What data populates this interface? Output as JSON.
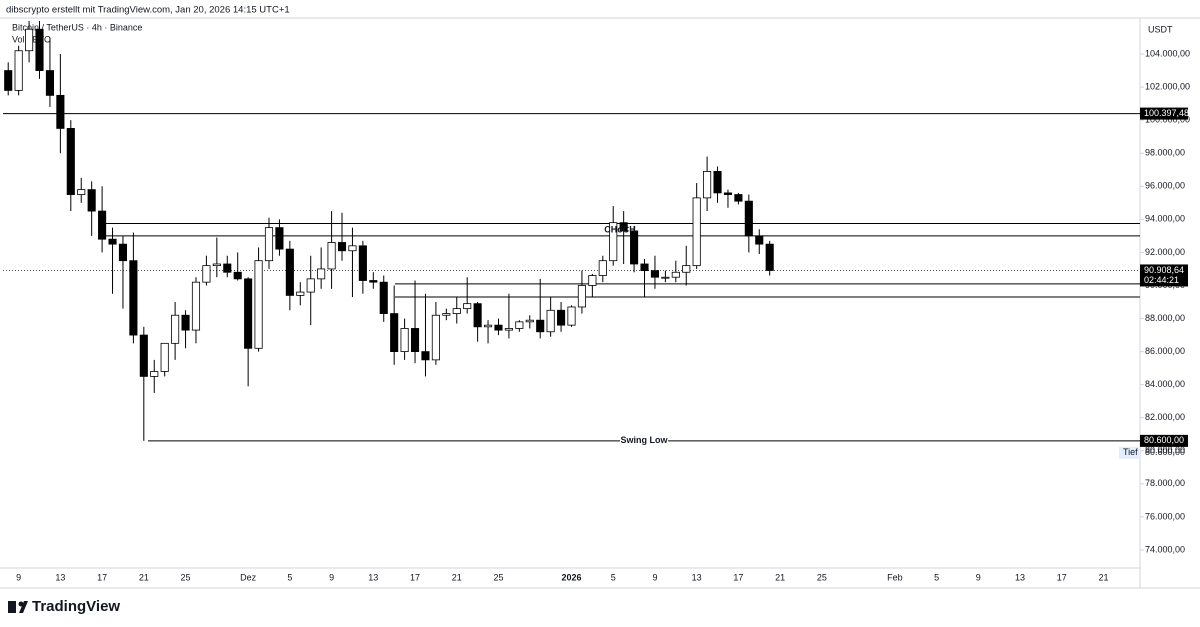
{
  "chart_data": {
    "type": "candlestick",
    "header": "dibscrypto erstellt mit TradingView.com, Jan 20, 2026 14:15 UTC+1",
    "title": "Bitcoin / TetherUS · 4h · Binance",
    "volume_label": "Vol · BTC",
    "currency": "USDT",
    "brand": "TradingView",
    "categories": [
      null,
      "9",
      null,
      null,
      null,
      "13",
      null,
      null,
      null,
      "17",
      null,
      null,
      null,
      "21",
      null,
      null,
      null,
      "25",
      null,
      null,
      null,
      null,
      null,
      "Dez",
      null,
      null,
      null,
      "5",
      null,
      null,
      null,
      "9",
      null,
      null,
      null,
      "13",
      null,
      null,
      null,
      "17",
      null,
      null,
      null,
      "21",
      null,
      null,
      null,
      "25",
      null,
      null,
      null,
      null,
      null,
      null,
      "2026",
      null,
      null,
      null,
      "5",
      null,
      null,
      null,
      "9",
      null,
      null,
      null,
      "13",
      null,
      null,
      null,
      "17",
      null,
      null,
      null,
      "21",
      null,
      null,
      null,
      "25",
      null,
      null,
      null,
      null,
      null,
      null,
      "Feb",
      null,
      null,
      null,
      "5",
      null,
      null,
      null,
      "9",
      null,
      null,
      null,
      "13",
      null,
      null,
      null,
      "17",
      null,
      null,
      null,
      "21",
      null,
      null,
      null
    ],
    "open": [
      103000,
      101800,
      104200,
      105500,
      103000,
      101500,
      99500,
      95500,
      95800,
      94500,
      92800,
      92500,
      91500,
      87000,
      84500,
      84800,
      86500,
      88200,
      87300,
      90200,
      91200,
      91300,
      90800,
      90400,
      86200,
      91500,
      93500,
      92200,
      89400,
      89600,
      90400,
      91000,
      92600,
      92100,
      92400,
      90300,
      90200,
      88300,
      86000,
      87400,
      86000,
      85500,
      88200,
      88300,
      88600,
      88900,
      87500,
      87600,
      87300,
      87400,
      87800,
      87900,
      87200,
      88500,
      87600,
      88700,
      90000,
      90600,
      91500,
      93800,
      93300,
      91300,
      90900,
      90500,
      90500,
      90800,
      91200,
      95300,
      96900,
      95600,
      95500,
      95100,
      93000,
      92500,
      null,
      null,
      null,
      null,
      null,
      null,
      null,
      null,
      null,
      null,
      null,
      null,
      null,
      null,
      null,
      null,
      null,
      null,
      null,
      null,
      null,
      null,
      null,
      null,
      null,
      null,
      null,
      null,
      null,
      null,
      null,
      null,
      null,
      null,
      null
    ],
    "high": [
      103500,
      104500,
      106000,
      106000,
      105000,
      104000,
      100000,
      96500,
      96300,
      96000,
      93500,
      93000,
      93200,
      87500,
      85500,
      86500,
      89000,
      88500,
      90500,
      91800,
      92900,
      91800,
      92000,
      90500,
      92300,
      94100,
      94000,
      92700,
      90200,
      91800,
      92300,
      94500,
      94400,
      93500,
      92700,
      90800,
      90600,
      90000,
      88000,
      90300,
      89500,
      89000,
      88600,
      89300,
      90500,
      89000,
      87900,
      88000,
      89500,
      87900,
      88200,
      90400,
      89300,
      89000,
      88800,
      90900,
      90700,
      91800,
      94800,
      94500,
      93600,
      91600,
      91800,
      90900,
      91500,
      92400,
      96200,
      97800,
      97200,
      95800,
      95600,
      95500,
      93400,
      92700,
      null,
      null,
      null,
      null,
      null,
      null,
      null,
      null,
      null,
      null,
      null,
      null,
      null,
      null,
      null,
      null,
      null,
      null,
      null,
      null,
      null,
      null,
      null,
      null,
      null,
      null,
      null,
      null,
      null,
      null,
      null,
      null,
      null,
      null,
      null
    ],
    "low": [
      101500,
      101500,
      103500,
      102500,
      100800,
      98000,
      94500,
      95000,
      93000,
      92000,
      89500,
      88600,
      86500,
      80600,
      83500,
      84500,
      85500,
      86200,
      86500,
      90000,
      90500,
      90500,
      90300,
      83900,
      86000,
      91000,
      91800,
      88500,
      88800,
      87600,
      89800,
      89800,
      91500,
      89300,
      89500,
      89800,
      87800,
      85200,
      85500,
      85300,
      84500,
      85200,
      87900,
      87700,
      88300,
      86600,
      86500,
      87000,
      86800,
      87200,
      87400,
      86800,
      86900,
      87200,
      87500,
      88300,
      89300,
      90200,
      91200,
      91300,
      90800,
      89300,
      89800,
      90200,
      90200,
      90000,
      91000,
      94500,
      95000,
      94700,
      94900,
      92000,
      91900,
      90600,
      null,
      null,
      null,
      null,
      null,
      null,
      null,
      null,
      null,
      null,
      null,
      null,
      null,
      null,
      null,
      null,
      null,
      null,
      null,
      null,
      null,
      null,
      null,
      null,
      null,
      null,
      null,
      null,
      null,
      null,
      null,
      null,
      null,
      null,
      null
    ],
    "close": [
      101800,
      104200,
      105500,
      103000,
      101500,
      99500,
      95500,
      95800,
      94500,
      92800,
      92500,
      91500,
      87000,
      84500,
      84800,
      86500,
      88200,
      87300,
      90200,
      91200,
      91300,
      90800,
      90400,
      86200,
      91500,
      93500,
      92200,
      89400,
      89600,
      90400,
      91000,
      92600,
      92100,
      92400,
      90300,
      90200,
      88300,
      86000,
      87400,
      86000,
      85500,
      88200,
      88300,
      88600,
      88900,
      87500,
      87600,
      87300,
      87400,
      87800,
      87900,
      87200,
      88500,
      87600,
      88700,
      90000,
      90600,
      91500,
      93800,
      93300,
      91300,
      90900,
      90500,
      90500,
      90800,
      91200,
      95300,
      96900,
      95600,
      95500,
      95100,
      93000,
      92500,
      90908.64,
      null,
      null,
      null,
      null,
      null,
      null,
      null,
      null,
      null,
      null,
      null,
      null,
      null,
      null,
      null,
      null,
      null,
      null,
      null,
      null,
      null,
      null,
      null,
      null,
      null,
      null,
      null,
      null,
      null,
      null,
      null,
      null,
      null,
      null,
      null
    ],
    "up_color": "#ffffff",
    "down_color": "#000000",
    "line_color": "#000000",
    "ylim": [
      72910,
      106180
    ],
    "yticks": [
      {
        "value": 74000,
        "label": "74.000,00"
      },
      {
        "value": 76000,
        "label": "76.000,00"
      },
      {
        "value": 78000,
        "label": "78.000,00"
      },
      {
        "value": 80000,
        "label": "80.000,00"
      },
      {
        "value": 82000,
        "label": "82.000,00"
      },
      {
        "value": 84000,
        "label": "84.000,00"
      },
      {
        "value": 86000,
        "label": "86.000,00"
      },
      {
        "value": 88000,
        "label": "88.000,00"
      },
      {
        "value": 90000,
        "label": "90.000,00"
      },
      {
        "value": 92000,
        "label": "92.000,00"
      },
      {
        "value": 94000,
        "label": "94.000,00"
      },
      {
        "value": 96000,
        "label": "96.000,00"
      },
      {
        "value": 98000,
        "label": "98.000,00"
      },
      {
        "value": 100000,
        "label": "100.000,00"
      },
      {
        "value": 102000,
        "label": "102.000,00"
      },
      {
        "value": 104000,
        "label": "104.000,00"
      }
    ],
    "grid": false,
    "hlines": [
      93750,
      93000,
      90100,
      89300
    ],
    "resistance": {
      "value": 100397.48,
      "label": "100.397,48"
    },
    "swing_low": {
      "value": 80600,
      "label": "80.600,00",
      "text": "Swing Low",
      "low_text": "Tief",
      "low_label": "80.600,00"
    },
    "last_price": {
      "value": 90908.64,
      "label": "90.908,64",
      "countdown": "02:44:21"
    },
    "annotation": {
      "text": "CHoCH",
      "value": 93000
    }
  }
}
